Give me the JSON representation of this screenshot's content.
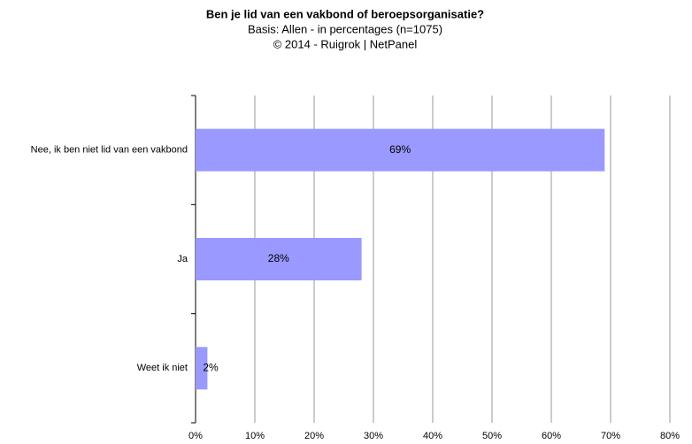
{
  "chart_data": {
    "type": "bar",
    "orientation": "horizontal",
    "title": "Ben je lid van een vakbond of beroepsorganisatie?",
    "subtitle": "Basis: Allen - in percentages (n=1075)",
    "source": "© 2014 - Ruigrok | NetPanel",
    "categories": [
      "Nee, ik ben niet lid van een vakbond",
      "Ja",
      "Weet ik niet"
    ],
    "values": [
      69,
      28,
      2
    ],
    "value_labels": [
      "69%",
      "28%",
      "2%"
    ],
    "color": "#9999ff",
    "xlim": [
      0,
      80
    ],
    "xticks": [
      {
        "value": 0,
        "label": "0%"
      },
      {
        "value": 10,
        "label": "10%"
      },
      {
        "value": 20,
        "label": "20%"
      },
      {
        "value": 30,
        "label": "30%"
      },
      {
        "value": 40,
        "label": "40%"
      },
      {
        "value": 50,
        "label": "50%"
      },
      {
        "value": 60,
        "label": "60%"
      },
      {
        "value": 70,
        "label": "70%"
      },
      {
        "value": 80,
        "label": "80%"
      }
    ],
    "grid": true
  }
}
